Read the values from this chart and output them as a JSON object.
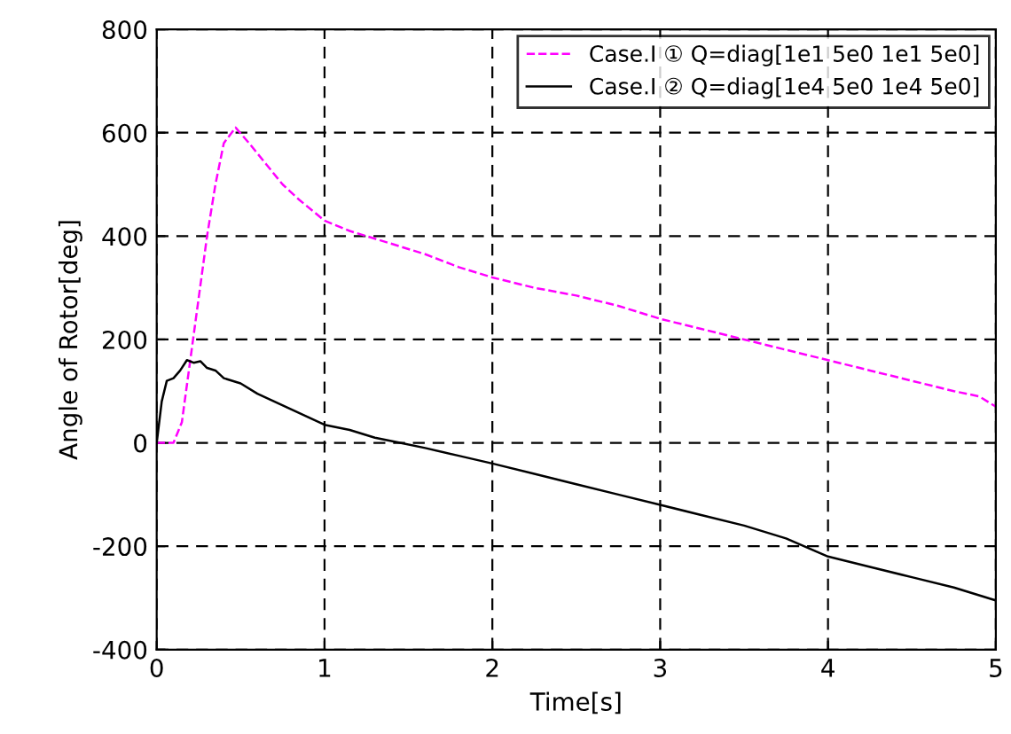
{
  "chart_data": {
    "type": "line",
    "xlabel": "Time[s]",
    "ylabel": "Angle of Rotor[deg]",
    "xlim": [
      0,
      5
    ],
    "ylim": [
      -400,
      800
    ],
    "xticks": [
      0,
      1,
      2,
      3,
      4,
      5
    ],
    "yticks": [
      -400,
      -200,
      0,
      200,
      400,
      600,
      800
    ],
    "grid": true,
    "legend": "top right",
    "series": [
      {
        "name": "Case.Ⅰ ① Q=diag[1e1 5e0 1e1 5e0]",
        "color": "#ff00ff",
        "line_style": "dashed",
        "x": [
          0,
          0.1,
          0.15,
          0.2,
          0.25,
          0.3,
          0.35,
          0.4,
          0.47,
          0.55,
          0.65,
          0.75,
          0.85,
          1.0,
          1.15,
          1.3,
          1.45,
          1.6,
          1.8,
          2.0,
          2.25,
          2.5,
          2.75,
          3.0,
          3.25,
          3.5,
          3.75,
          4.0,
          4.25,
          4.5,
          4.75,
          4.9,
          5.0
        ],
        "values": [
          0,
          0,
          40,
          160,
          280,
          400,
          500,
          580,
          610,
          580,
          540,
          500,
          470,
          430,
          410,
          395,
          380,
          365,
          340,
          320,
          300,
          285,
          265,
          240,
          220,
          200,
          180,
          160,
          140,
          120,
          100,
          90,
          70
        ]
      },
      {
        "name": "Case.Ⅰ ② Q=diag[1e4 5e0 1e4 5e0]",
        "color": "#000000",
        "line_style": "solid",
        "x": [
          0,
          0.03,
          0.06,
          0.1,
          0.14,
          0.18,
          0.22,
          0.26,
          0.3,
          0.35,
          0.4,
          0.5,
          0.6,
          0.7,
          0.8,
          0.9,
          1.0,
          1.15,
          1.3,
          1.45,
          1.6,
          1.8,
          2.0,
          2.25,
          2.5,
          2.75,
          3.0,
          3.25,
          3.5,
          3.75,
          4.0,
          4.25,
          4.5,
          4.75,
          5.0
        ],
        "values": [
          0,
          80,
          120,
          125,
          140,
          160,
          155,
          158,
          145,
          140,
          125,
          115,
          95,
          80,
          65,
          50,
          35,
          25,
          10,
          0,
          -10,
          -25,
          -40,
          -60,
          -80,
          -100,
          -120,
          -140,
          -160,
          -185,
          -220,
          -240,
          -260,
          -280,
          -305
        ]
      }
    ]
  }
}
